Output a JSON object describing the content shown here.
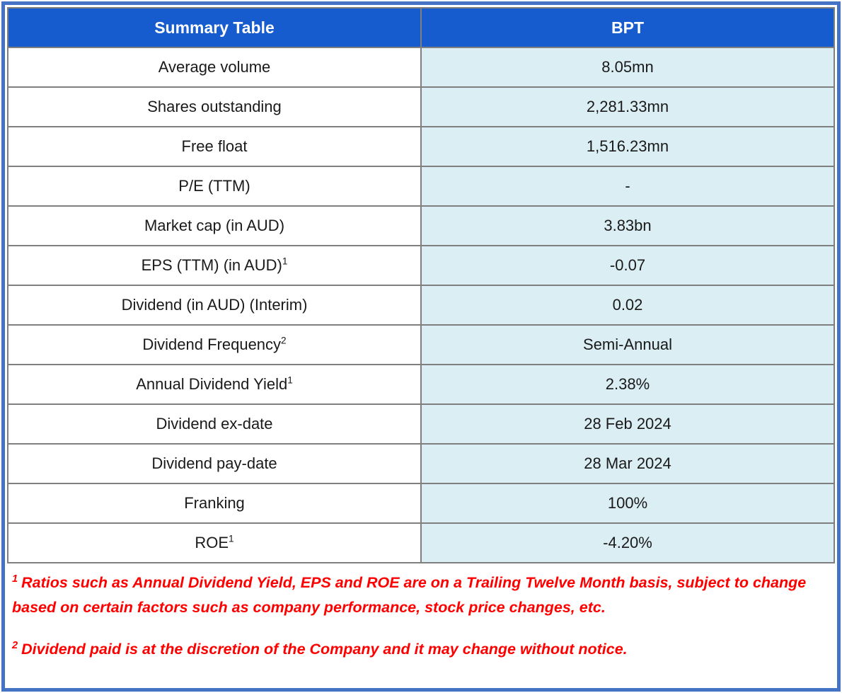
{
  "table": {
    "header": {
      "col1": "Summary Table",
      "col2": "BPT"
    },
    "rows": [
      {
        "label": "Average volume",
        "sup": "",
        "value": "8.05mn"
      },
      {
        "label": "Shares outstanding",
        "sup": "",
        "value": "2,281.33mn"
      },
      {
        "label": "Free float",
        "sup": "",
        "value": "1,516.23mn"
      },
      {
        "label": "P/E (TTM)",
        "sup": "",
        "value": "-"
      },
      {
        "label": "Market cap (in AUD)",
        "sup": "",
        "value": "3.83bn"
      },
      {
        "label": "EPS (TTM) (in AUD)",
        "sup": "1",
        "value": "-0.07"
      },
      {
        "label": "Dividend (in AUD) (Interim)",
        "sup": "",
        "value": "0.02"
      },
      {
        "label": "Dividend Frequency",
        "sup": "2",
        "value": "Semi-Annual"
      },
      {
        "label": "Annual Dividend Yield",
        "sup": "1",
        "value": "2.38%"
      },
      {
        "label": "Dividend ex-date",
        "sup": "",
        "value": "28 Feb 2024"
      },
      {
        "label": "Dividend pay-date",
        "sup": "",
        "value": "28 Mar 2024"
      },
      {
        "label": "Franking",
        "sup": "",
        "value": "100%"
      },
      {
        "label": "ROE",
        "sup": "1",
        "value": "-4.20%"
      }
    ]
  },
  "footnotes": [
    {
      "sup": "1",
      "text": "Ratios such as Annual Dividend Yield, EPS and ROE are on a Trailing Twelve Month basis, subject to change based on certain factors such as company performance, stock price changes, etc."
    },
    {
      "sup": "2",
      "text": "Dividend paid is at the discretion of the Company and it may change without notice."
    }
  ],
  "colors": {
    "header_bg": "#165CCE",
    "header_text": "#FFFFFF",
    "value_bg": "#DAEEF3",
    "grid": "#7F7F7F",
    "frame": "#4472C4",
    "footnote": "#FF0000",
    "text": "#1A1A1A"
  }
}
